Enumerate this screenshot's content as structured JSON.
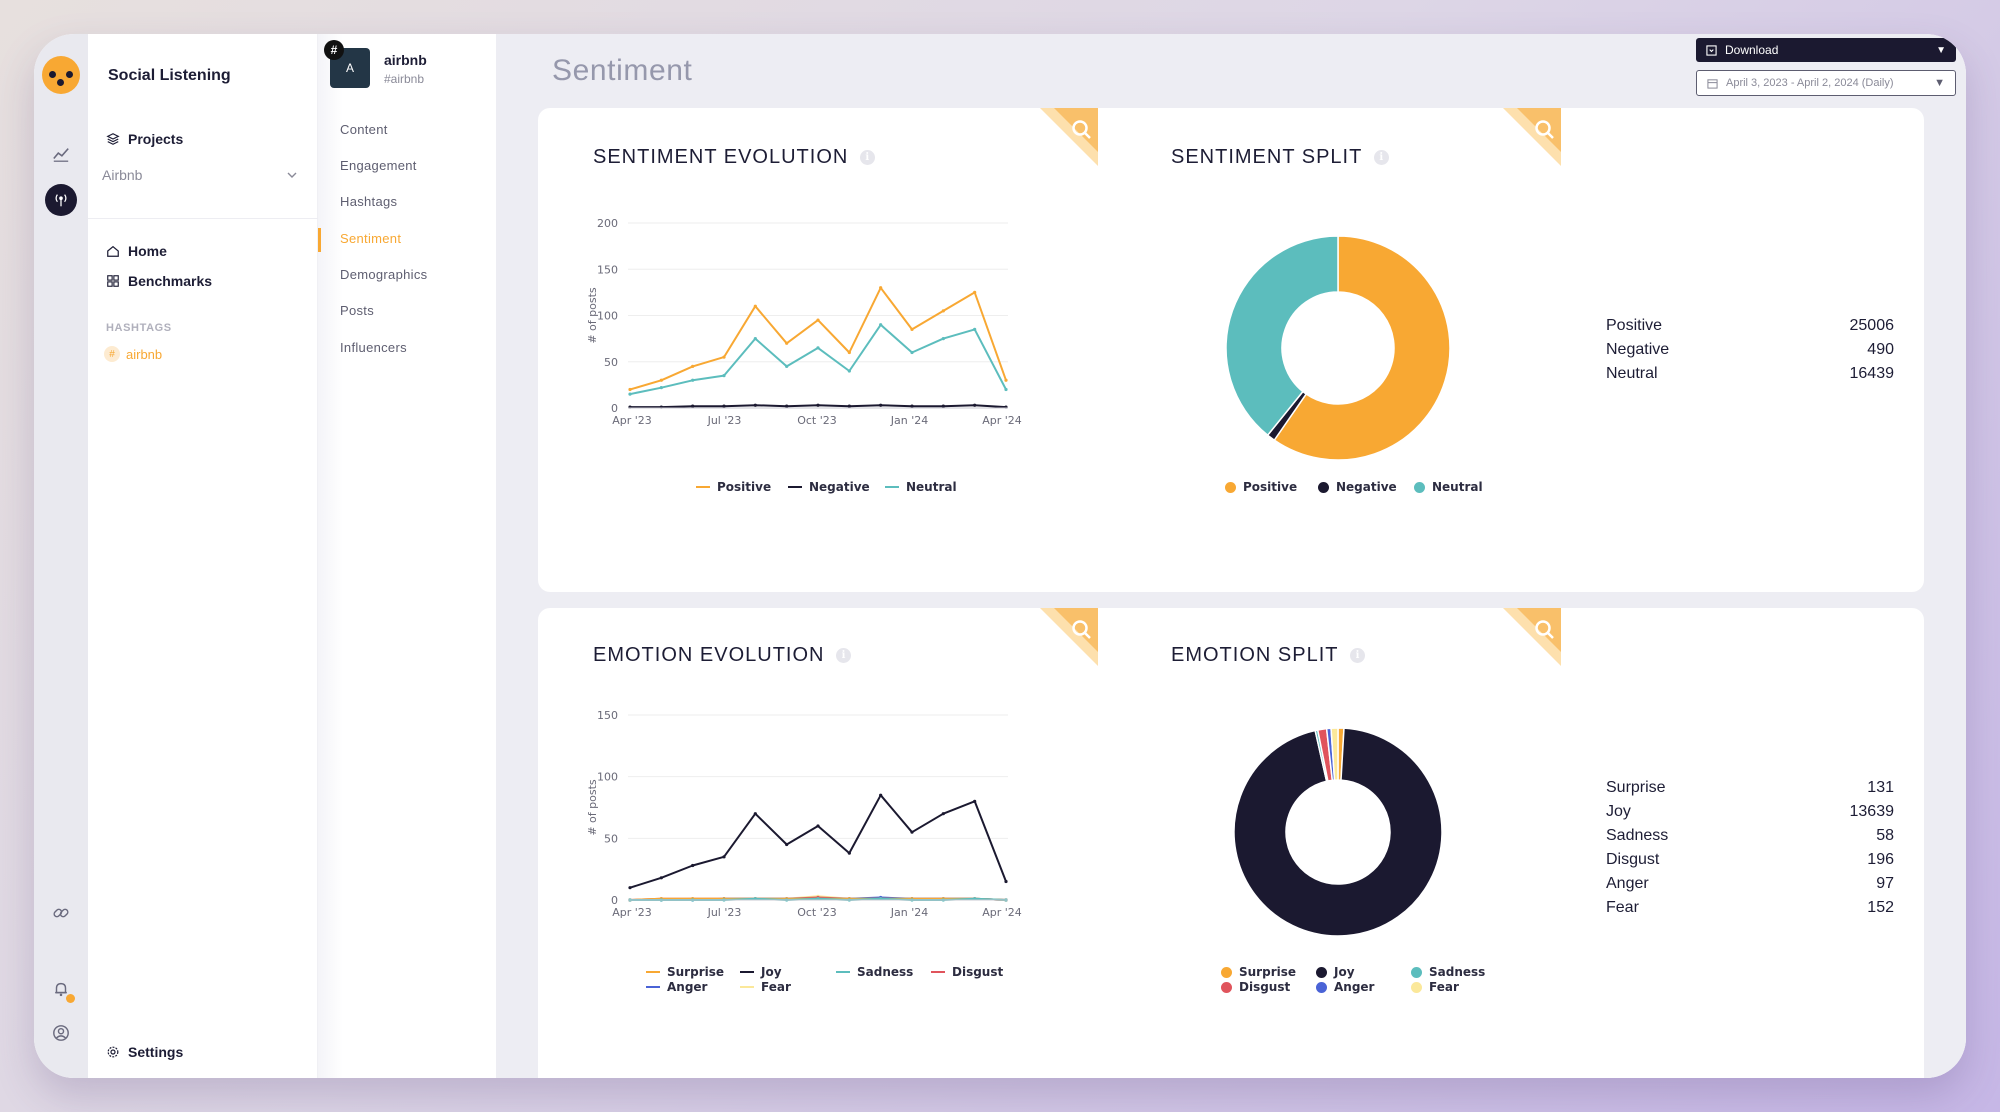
{
  "app": {
    "title": "Social Listening"
  },
  "sidebar": {
    "projects_label": "Projects",
    "project_selected": "Airbnb",
    "home_label": "Home",
    "benchmarks_label": "Benchmarks",
    "hashtags_section": "HASHTAGS",
    "hashtag": "airbnb",
    "settings_label": "Settings"
  },
  "account": {
    "initial": "A",
    "badge": "#",
    "name": "airbnb",
    "handle": "#airbnb"
  },
  "subnav": [
    "Content",
    "Engagement",
    "Hashtags",
    "Sentiment",
    "Demographics",
    "Posts",
    "Influencers"
  ],
  "subnav_active": "Sentiment",
  "page": {
    "title": "Sentiment",
    "download_label": "Download",
    "date_range": "April 3, 2023 - April 2, 2024 (Daily)"
  },
  "colors": {
    "accent": "#f8a833",
    "positive": "#f8a833",
    "negative": "#1b1930",
    "neutral": "#5cbdbd",
    "surprise": "#f8a833",
    "joy": "#1b1930",
    "sadness": "#5cbdbd",
    "disgust": "#e0545c",
    "anger": "#4a63d6",
    "fear": "#fbe89a"
  },
  "icons": {
    "rail": [
      "analytics-icon",
      "broadcast-icon",
      "link-icon",
      "bell-icon",
      "user-circle-icon"
    ],
    "zoom": "zoom-search-icon",
    "info": "info-icon"
  },
  "widgets": {
    "sentiment_evolution": {
      "title": "SENTIMENT EVOLUTION",
      "ylabel": "# of posts"
    },
    "sentiment_split": {
      "title": "SENTIMENT SPLIT"
    },
    "emotion_evolution": {
      "title": "EMOTION EVOLUTION",
      "ylabel": "# of posts"
    },
    "emotion_split": {
      "title": "EMOTION SPLIT"
    }
  },
  "chart_data": [
    {
      "type": "line",
      "title": "SENTIMENT EVOLUTION",
      "ylabel": "# of posts",
      "ylim": [
        0,
        200
      ],
      "yticks": [
        0,
        50,
        100,
        150,
        200
      ],
      "x_ticks": [
        "Apr '23",
        "Jul '23",
        "Oct '23",
        "Jan '24",
        "Apr '24"
      ],
      "x": [
        "2023-04",
        "2023-05",
        "2023-06",
        "2023-07",
        "2023-08",
        "2023-09",
        "2023-10",
        "2023-11",
        "2023-12",
        "2024-01",
        "2024-02",
        "2024-03",
        "2024-04"
      ],
      "series": [
        {
          "name": "Positive",
          "values": [
            20,
            30,
            45,
            55,
            110,
            70,
            95,
            60,
            130,
            85,
            105,
            125,
            30
          ]
        },
        {
          "name": "Negative",
          "values": [
            1,
            1,
            2,
            2,
            3,
            2,
            3,
            2,
            3,
            2,
            2,
            3,
            1
          ]
        },
        {
          "name": "Neutral",
          "values": [
            15,
            22,
            30,
            35,
            75,
            45,
            65,
            40,
            90,
            60,
            75,
            85,
            20
          ]
        }
      ],
      "legend": [
        "Positive",
        "Negative",
        "Neutral"
      ],
      "legend_position": "bottom"
    },
    {
      "type": "pie",
      "title": "SENTIMENT SPLIT",
      "labels": [
        "Positive",
        "Negative",
        "Neutral"
      ],
      "values": [
        25006,
        490,
        16439
      ],
      "legend_position": "bottom"
    },
    {
      "type": "line",
      "title": "EMOTION EVOLUTION",
      "ylabel": "# of posts",
      "ylim": [
        0,
        150
      ],
      "yticks": [
        0,
        50,
        100,
        150
      ],
      "x_ticks": [
        "Apr '23",
        "Jul '23",
        "Oct '23",
        "Jan '24",
        "Apr '24"
      ],
      "x": [
        "2023-04",
        "2023-05",
        "2023-06",
        "2023-07",
        "2023-08",
        "2023-09",
        "2023-10",
        "2023-11",
        "2023-12",
        "2024-01",
        "2024-02",
        "2024-03",
        "2024-04"
      ],
      "series": [
        {
          "name": "Surprise",
          "values": [
            0,
            1,
            1,
            1,
            1,
            1,
            1,
            1,
            1,
            1,
            1,
            1,
            0
          ]
        },
        {
          "name": "Joy",
          "values": [
            10,
            18,
            28,
            35,
            70,
            45,
            60,
            38,
            85,
            55,
            70,
            80,
            15
          ]
        },
        {
          "name": "Sadness",
          "values": [
            0,
            0,
            0,
            0,
            1,
            0,
            1,
            0,
            1,
            0,
            0,
            1,
            0
          ]
        },
        {
          "name": "Disgust",
          "values": [
            0,
            1,
            1,
            1,
            1,
            1,
            2,
            1,
            1,
            1,
            1,
            1,
            0
          ]
        },
        {
          "name": "Anger",
          "values": [
            0,
            0,
            0,
            1,
            1,
            1,
            1,
            1,
            2,
            1,
            1,
            1,
            0
          ]
        },
        {
          "name": "Fear",
          "values": [
            0,
            0,
            1,
            1,
            1,
            1,
            3,
            1,
            1,
            1,
            1,
            1,
            0
          ]
        }
      ],
      "legend": [
        "Surprise",
        "Joy",
        "Sadness",
        "Disgust",
        "Anger",
        "Fear"
      ],
      "legend_position": "bottom"
    },
    {
      "type": "pie",
      "title": "EMOTION SPLIT",
      "labels": [
        "Surprise",
        "Joy",
        "Sadness",
        "Disgust",
        "Anger",
        "Fear"
      ],
      "values": [
        131,
        13639,
        58,
        196,
        97,
        152
      ],
      "legend_position": "bottom"
    }
  ]
}
